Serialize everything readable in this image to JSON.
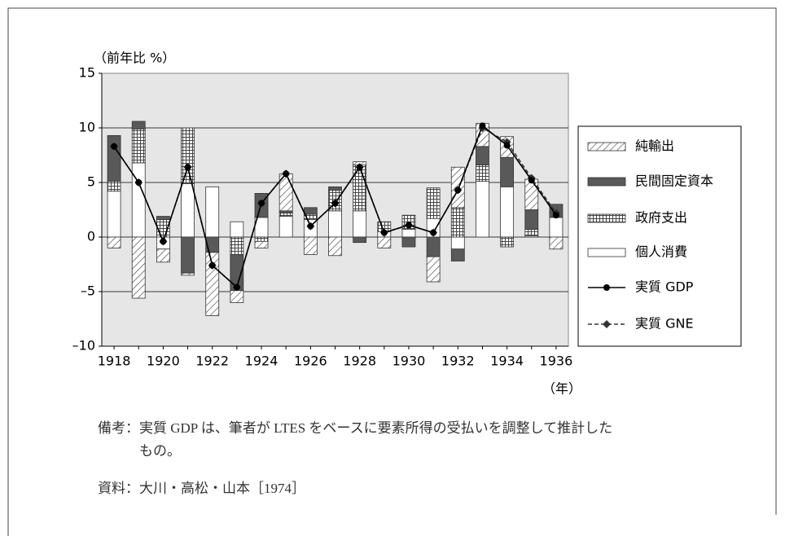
{
  "chart_data": {
    "type": "stacked-bar-line",
    "y_label": "（前年比 %）",
    "x_label": "（年）",
    "categories": [
      "1918",
      null,
      "1920",
      null,
      "1922",
      null,
      "1924",
      null,
      "1926",
      null,
      "1928",
      null,
      "1930",
      null,
      "1932",
      null,
      "1934",
      null,
      "1936"
    ],
    "ylim": [
      -10,
      15
    ],
    "yticks": [
      {
        "value": -10,
        "label": "–10"
      },
      {
        "value": -5,
        "label": "–5"
      },
      0,
      5,
      10,
      15
    ],
    "grid": true,
    "legend": "right",
    "series": [
      {
        "name": "純輸出",
        "fill": "hatch",
        "color": "#555555",
        "values": [
          -1.0,
          -5.6,
          -1.2,
          -0.2,
          -5.8,
          -1.1,
          -0.6,
          3.4,
          -1.6,
          -1.7,
          0.3,
          -1.0,
          0,
          -2.3,
          3.7,
          2.1,
          1.9,
          2.8,
          -1.1
        ]
      },
      {
        "name": "民間固定資本",
        "fill": "solid",
        "color": "#595959",
        "values": [
          4.2,
          0.7,
          0.3,
          -3.3,
          -1.4,
          -3.3,
          2.2,
          0.2,
          0.6,
          0.3,
          -0.5,
          0,
          -0.9,
          -1.8,
          -1.1,
          1.7,
          2.7,
          1.8,
          1.2
        ]
      },
      {
        "name": "政府支出",
        "fill": "grid",
        "color": "#555555",
        "values": [
          0.9,
          3.1,
          1.6,
          5.1,
          0,
          -1.6,
          -0.4,
          0.3,
          0.5,
          1.9,
          4.2,
          0.9,
          1.3,
          2.8,
          2.7,
          1.5,
          -0.9,
          0.6,
          0
        ]
      },
      {
        "name": "個人消費",
        "fill": "solid",
        "color": "#ffffff",
        "values": [
          4.2,
          6.8,
          -1.1,
          4.9,
          4.6,
          1.4,
          1.8,
          1.9,
          1.6,
          2.4,
          2.4,
          0.5,
          0.7,
          1.7,
          -1.1,
          5.1,
          4.6,
          0.1,
          1.8
        ]
      },
      {
        "name": "実質 GDP",
        "type": "line",
        "marker": "circle",
        "dash": false,
        "color": "#000000",
        "values": [
          8.3,
          5.0,
          -0.4,
          6.4,
          -2.6,
          -4.6,
          3.1,
          5.8,
          1.0,
          3.1,
          6.4,
          0.4,
          1.1,
          0.4,
          4.3,
          10.2,
          8.4,
          5.2,
          2.0
        ]
      },
      {
        "name": "実質 GNE",
        "type": "line",
        "marker": "diamond",
        "dash": true,
        "color": "#333333",
        "values": [
          8.3,
          5.0,
          -0.4,
          6.4,
          -2.6,
          -4.6,
          3.1,
          5.8,
          1.0,
          3.1,
          6.4,
          0.4,
          1.1,
          0.4,
          4.3,
          10.0,
          8.7,
          5.4,
          2.2
        ]
      }
    ]
  },
  "notes": [
    {
      "label": "備考：",
      "lines": [
        "実質 GDP は、筆者が LTES をベースに要素所得の受払いを調整して推計した",
        "もの。"
      ]
    },
    {
      "label": "資料：",
      "lines": [
        "大川・高松・山本［1974］"
      ]
    }
  ]
}
